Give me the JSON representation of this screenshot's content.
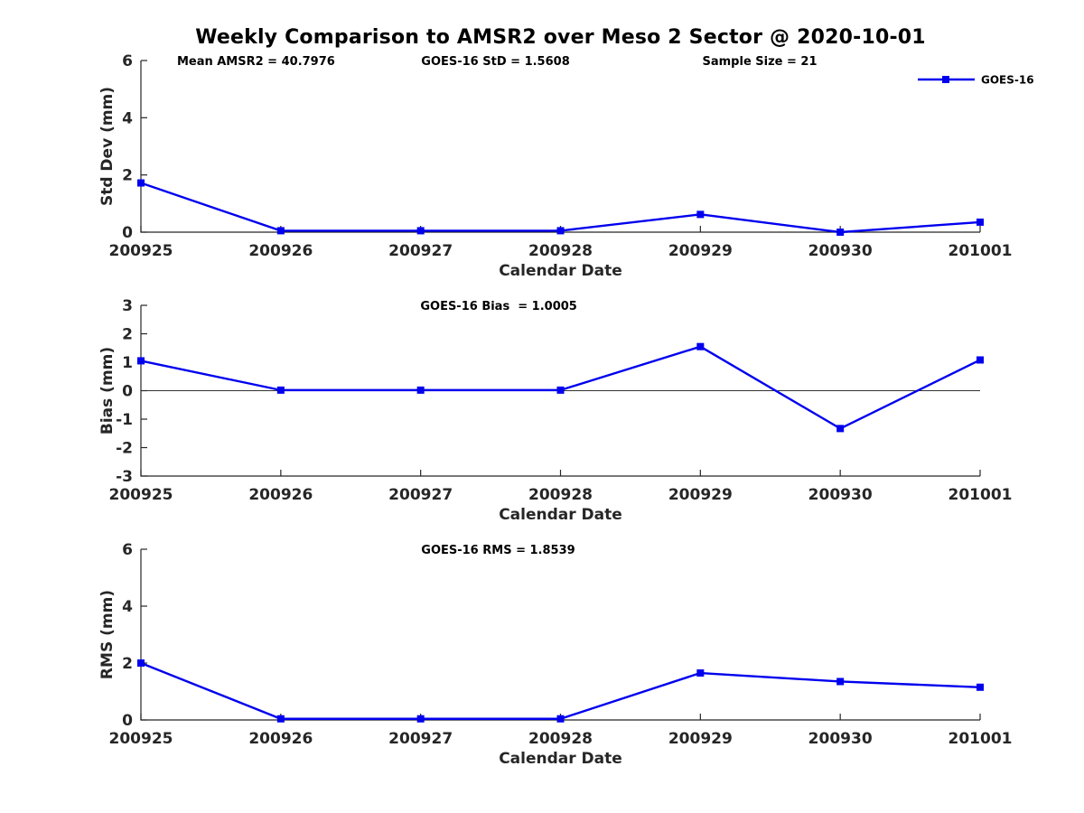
{
  "title": "Weekly Comparison to AMSR2 over Meso 2 Sector @ 2020-10-01",
  "colors": {
    "series": "#0000EE",
    "axis": "#262626",
    "annotation_text": "#000000",
    "zero_line": "#333333",
    "background": "#ffffff"
  },
  "legend": {
    "label": "GOES-16",
    "position": "top-right",
    "marker": "square",
    "boxed": false
  },
  "chart_data": [
    {
      "type": "line",
      "id": "std-dev-panel",
      "categories": [
        "200925",
        "200926",
        "200927",
        "200928",
        "200929",
        "200930",
        "201001"
      ],
      "series": [
        {
          "name": "GOES-16",
          "values": [
            1.72,
            0.05,
            0.05,
            0.05,
            0.62,
            0.0,
            0.35
          ]
        }
      ],
      "xlabel": "Calendar Date",
      "ylabel": "Std Dev (mm)",
      "ylim": [
        0,
        6
      ],
      "yticks": [
        0,
        2,
        4,
        6
      ],
      "zero_line": false,
      "legend_visible": true,
      "grid": false,
      "annotations": [
        {
          "text": "Mean AMSR2 = 40.7976",
          "xfrac": 0.043
        },
        {
          "text": "GOES-16 StD = 1.5608",
          "xfrac": 0.334
        },
        {
          "text": "Sample Size = 21",
          "xfrac": 0.669
        }
      ]
    },
    {
      "type": "line",
      "id": "bias-panel",
      "categories": [
        "200925",
        "200926",
        "200927",
        "200928",
        "200929",
        "200930",
        "201001"
      ],
      "series": [
        {
          "name": "GOES-16",
          "values": [
            1.05,
            0.02,
            0.02,
            0.02,
            1.55,
            -1.33,
            1.08
          ]
        }
      ],
      "xlabel": "Calendar Date",
      "ylabel": "Bias (mm)",
      "ylim": [
        -3,
        3
      ],
      "yticks": [
        -3,
        -2,
        -1,
        0,
        1,
        2,
        3
      ],
      "zero_line": true,
      "legend_visible": false,
      "grid": false,
      "annotations": [
        {
          "text": "GOES-16 Bias  = 1.0005",
          "xfrac": 0.333
        }
      ]
    },
    {
      "type": "line",
      "id": "rms-panel",
      "categories": [
        "200925",
        "200926",
        "200927",
        "200928",
        "200929",
        "200930",
        "201001"
      ],
      "series": [
        {
          "name": "GOES-16",
          "values": [
            2.0,
            0.04,
            0.04,
            0.04,
            1.65,
            1.35,
            1.15
          ]
        }
      ],
      "xlabel": "Calendar Date",
      "ylabel": "RMS (mm)",
      "ylim": [
        0,
        6
      ],
      "yticks": [
        0,
        2,
        4,
        6
      ],
      "zero_line": false,
      "legend_visible": false,
      "grid": false,
      "annotations": [
        {
          "text": "GOES-16 RMS = 1.8539",
          "xfrac": 0.334
        }
      ]
    }
  ]
}
